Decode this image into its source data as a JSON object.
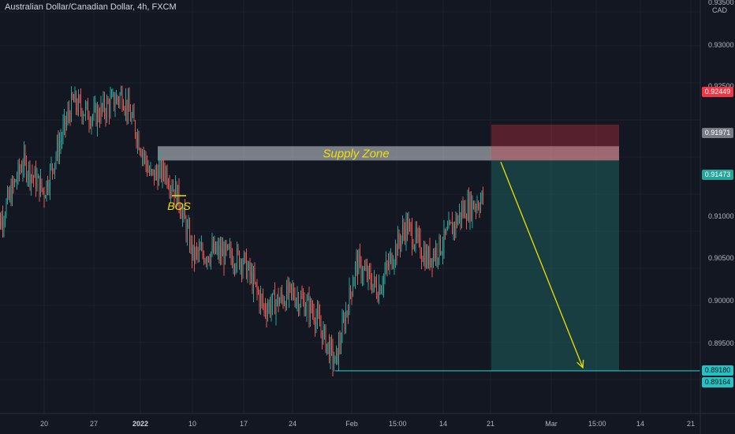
{
  "header": {
    "title": "Australian Dollar/Canadian Dollar, 4h, FXCM"
  },
  "colors": {
    "background": "#131722",
    "up": "#26a69a",
    "down": "#ef5350",
    "supply_zone": "#cfd3da",
    "stop_zone": "#f23645",
    "target_zone": "#1f6f6b",
    "arrow": "#f0e000",
    "bos": "#f0e000",
    "target_line": "#22c3c3"
  },
  "chart_data": {
    "type": "candlestick",
    "symbol": "Australian Dollar/Canadian Dollar",
    "timeframe": "4h",
    "source": "FXCM",
    "x_ticks": [
      "20",
      "27",
      "2022",
      "10",
      "17",
      "24",
      "Feb",
      "15:00",
      "14",
      "21",
      "Mar",
      "15:00",
      "14",
      "21"
    ],
    "y_ticks": [
      "0.93500",
      "0.93000",
      "0.92500",
      "0.91000",
      "0.90500",
      "0.90000",
      "0.89500"
    ],
    "price_tags": [
      {
        "value": "0.92449",
        "kind": "stop"
      },
      {
        "value": "0.91971",
        "kind": "entry"
      },
      {
        "value": "0.91473",
        "kind": "last"
      },
      {
        "value": "0.89180",
        "kind": "target"
      },
      {
        "value": "0.89164",
        "kind": "target"
      }
    ],
    "y_axis_unit": "CAD",
    "path_closes": [
      {
        "date": "Dec 13",
        "price": 0.9095
      },
      {
        "date": "Dec 17",
        "price": 0.9195
      },
      {
        "date": "Dec 20",
        "price": 0.9155
      },
      {
        "date": "Dec 24",
        "price": 0.9275
      },
      {
        "date": "Dec 27",
        "price": 0.9255
      },
      {
        "date": "Dec 31",
        "price": 0.9285
      },
      {
        "date": "Jan 2",
        "price": 0.9235
      },
      {
        "date": "Jan 4",
        "price": 0.9175
      },
      {
        "date": "Jan 6",
        "price": 0.9185
      },
      {
        "date": "Jan 8",
        "price": 0.9145
      },
      {
        "date": "Jan 10",
        "price": 0.907
      },
      {
        "date": "Jan 13",
        "price": 0.9075
      },
      {
        "date": "Jan 17",
        "price": 0.9065
      },
      {
        "date": "Jan 20",
        "price": 0.9
      },
      {
        "date": "Jan 24",
        "price": 0.902
      },
      {
        "date": "Jan 27",
        "price": 0.8995
      },
      {
        "date": "Jan 30",
        "price": 0.8925
      },
      {
        "date": "Feb 2",
        "price": 0.906
      },
      {
        "date": "Feb 5",
        "price": 0.9025
      },
      {
        "date": "Feb 9",
        "price": 0.911
      },
      {
        "date": "Feb 12",
        "price": 0.9065
      },
      {
        "date": "Feb 14",
        "price": 0.9085
      },
      {
        "date": "Feb 17",
        "price": 0.913
      },
      {
        "date": "Feb 20",
        "price": 0.9147
      }
    ],
    "annotations": {
      "supply_zone": {
        "label": "Supply Zone",
        "from": "Jan 5",
        "price_low": 0.9197,
        "price_high": 0.9216
      },
      "bos": {
        "label": "BOS",
        "from": "Jan 7",
        "to": "Jan 9",
        "price": 0.915
      },
      "short_position": {
        "from": "Feb 21",
        "to": "Mar 11",
        "entry": 0.91971,
        "stop": 0.92449,
        "target": 0.89164
      }
    }
  }
}
